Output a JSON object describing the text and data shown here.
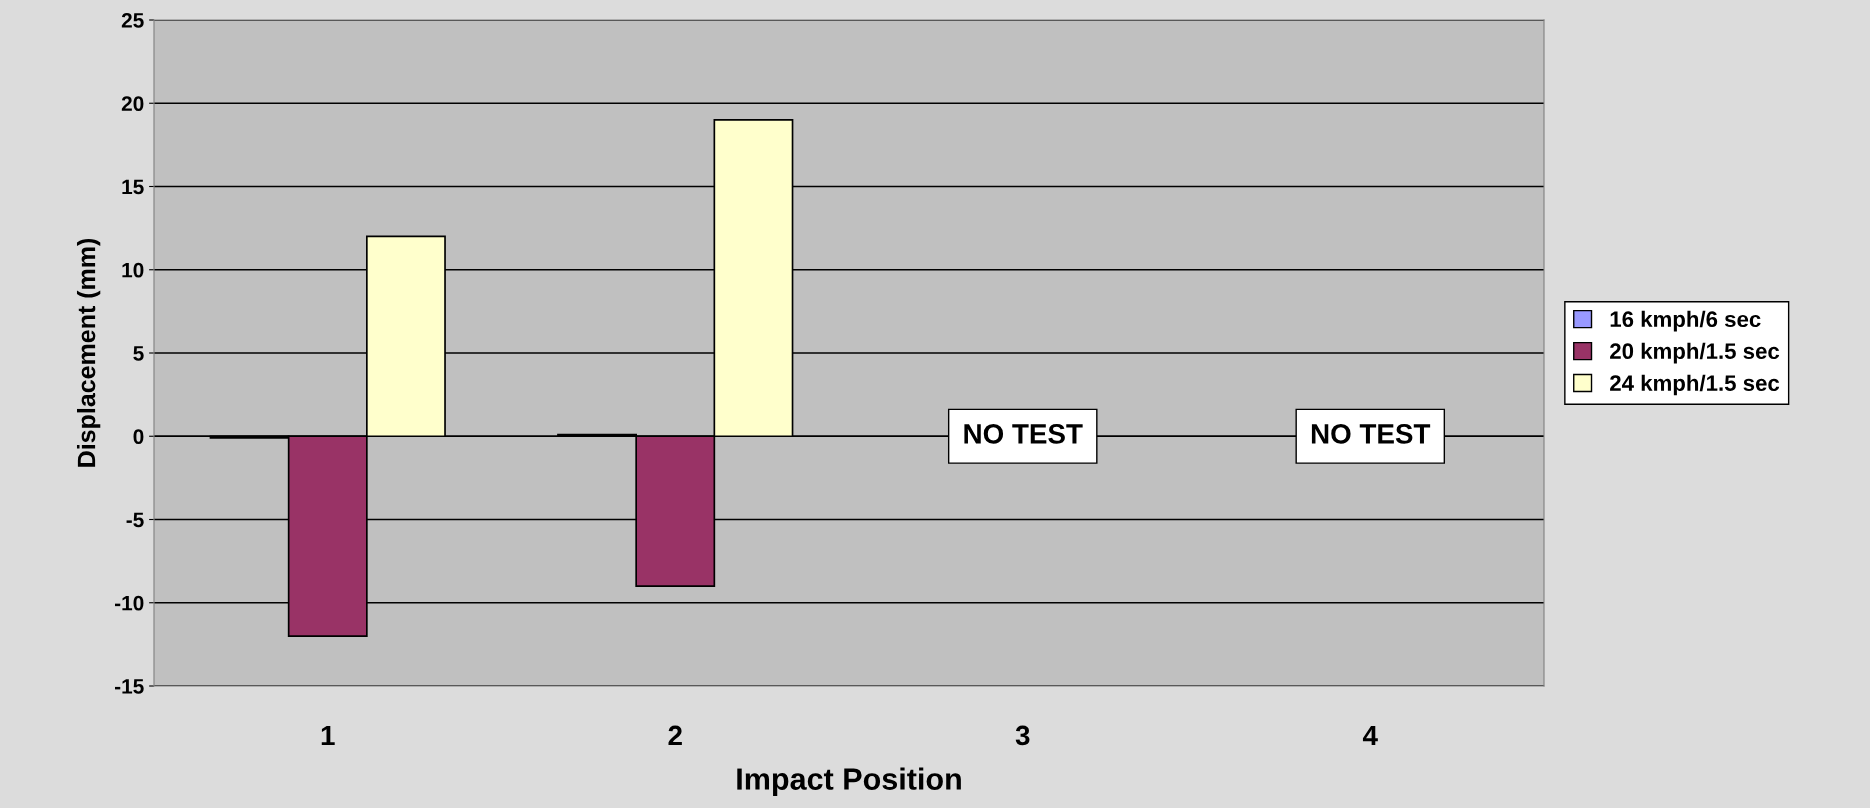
{
  "chart_data": {
    "type": "bar",
    "xlabel": "Impact Position",
    "ylabel": "Displacement (mm)",
    "categories": [
      "1",
      "2",
      "3",
      "4"
    ],
    "series": [
      {
        "name": "16 kmph/6 sec",
        "color": "#9999ff",
        "values": [
          -0.1,
          0.1,
          null,
          null
        ]
      },
      {
        "name": "20 kmph/1.5 sec",
        "color": "#993366",
        "values": [
          -12,
          -9,
          null,
          null
        ]
      },
      {
        "name": "24 kmph/1.5 sec",
        "color": "#ffffcc",
        "values": [
          12,
          19,
          null,
          null
        ]
      }
    ],
    "ylim": [
      -15,
      25
    ],
    "yticks": [
      -15,
      -10,
      -5,
      0,
      5,
      10,
      15,
      20,
      25
    ],
    "grid": "y",
    "legend": "right",
    "annotations": [
      "NO TEST",
      "NO TEST"
    ]
  }
}
